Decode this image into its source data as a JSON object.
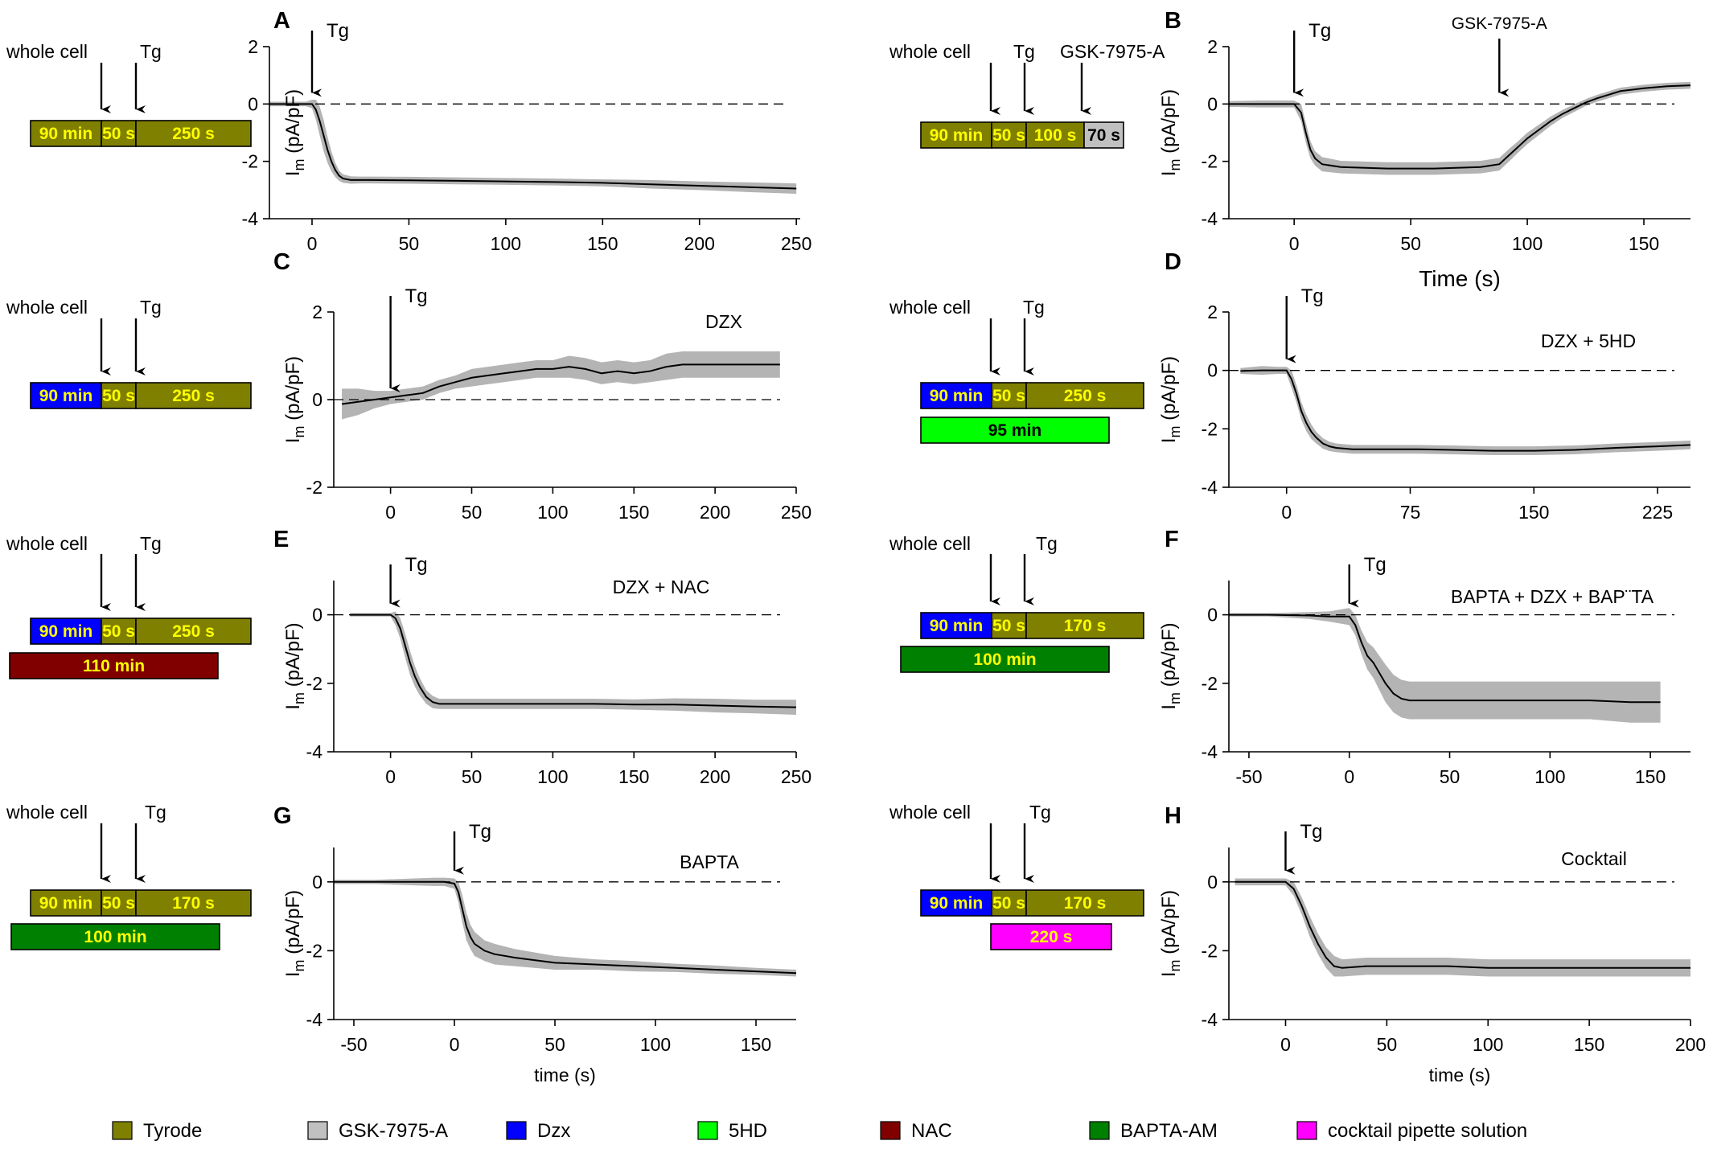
{
  "colors": {
    "Tyrode": "#808000",
    "GSK-7975-A": "#c0c0c0",
    "Dzx": "#0000ff",
    "5HD": "#00ff00",
    "NAC": "#800000",
    "BAPTA-AM": "#008000",
    "cocktail pipette solution": "#ff00ff",
    "barTextLight": "#ffff00",
    "barTextDark": "#000000",
    "trace": "#000000",
    "errorBand": "#b4b4b4"
  },
  "legend": [
    {
      "key": "Tyrode",
      "label": "Tyrode"
    },
    {
      "key": "GSK-7975-A",
      "label": "GSK-7975-A"
    },
    {
      "key": "Dzx",
      "label": "Dzx"
    },
    {
      "key": "5HD",
      "label": "5HD"
    },
    {
      "key": "NAC",
      "label": "NAC"
    },
    {
      "key": "BAPTA-AM",
      "label": "BAPTA-AM"
    },
    {
      "key": "cocktail pipette solution",
      "label": "cocktail pipette solution"
    }
  ],
  "protocols": [
    {
      "id": "A",
      "markers": [
        "whole cell",
        "Tg"
      ],
      "rows": [
        [
          {
            "label": "90 min",
            "color": "Tyrode"
          },
          {
            "label": "50 s",
            "color": "Tyrode"
          },
          {
            "label": "250 s",
            "color": "Tyrode"
          }
        ]
      ]
    },
    {
      "id": "B",
      "markers": [
        "whole cell",
        "Tg",
        "GSK-7975-A"
      ],
      "rows": [
        [
          {
            "label": "90 min",
            "color": "Tyrode"
          },
          {
            "label": "50 s",
            "color": "Tyrode"
          },
          {
            "label": "100 s",
            "color": "Tyrode"
          },
          {
            "label": "70 s",
            "color": "GSK-7975-A"
          }
        ]
      ]
    },
    {
      "id": "C",
      "markers": [
        "whole cell",
        "Tg"
      ],
      "rows": [
        [
          {
            "label": "90 min",
            "color": "Dzx"
          },
          {
            "label": "50 s",
            "color": "Tyrode"
          },
          {
            "label": "250 s",
            "color": "Tyrode"
          }
        ]
      ]
    },
    {
      "id": "D",
      "markers": [
        "whole cell",
        "Tg"
      ],
      "rows": [
        [
          {
            "label": "90 min",
            "color": "Dzx"
          },
          {
            "label": "50 s",
            "color": "Tyrode"
          },
          {
            "label": "250 s",
            "color": "Tyrode"
          }
        ],
        [
          {
            "label": "95 min",
            "color": "5HD"
          }
        ]
      ]
    },
    {
      "id": "E",
      "markers": [
        "whole cell",
        "Tg"
      ],
      "rows": [
        [
          {
            "label": "90 min",
            "color": "Dzx"
          },
          {
            "label": "50 s",
            "color": "Tyrode"
          },
          {
            "label": "250 s",
            "color": "Tyrode"
          }
        ],
        [
          {
            "label": "110 min",
            "color": "NAC"
          }
        ]
      ]
    },
    {
      "id": "F",
      "markers": [
        "whole cell",
        "Tg"
      ],
      "rows": [
        [
          {
            "label": "90 min",
            "color": "Dzx"
          },
          {
            "label": "50 s",
            "color": "Tyrode"
          },
          {
            "label": "170 s",
            "color": "Tyrode"
          }
        ],
        [
          {
            "label": "100 min",
            "color": "BAPTA-AM"
          }
        ]
      ]
    },
    {
      "id": "G",
      "markers": [
        "whole cell",
        "Tg"
      ],
      "rows": [
        [
          {
            "label": "90 min",
            "color": "Tyrode"
          },
          {
            "label": "50 s",
            "color": "Tyrode"
          },
          {
            "label": "170 s",
            "color": "Tyrode"
          }
        ],
        [
          {
            "label": "100 min",
            "color": "BAPTA-AM"
          }
        ]
      ]
    },
    {
      "id": "H",
      "markers": [
        "whole cell",
        "Tg"
      ],
      "rows": [
        [
          {
            "label": "90 min",
            "color": "Dzx"
          },
          {
            "label": "50 s",
            "color": "Tyrode"
          },
          {
            "label": "170 s",
            "color": "Tyrode"
          }
        ],
        [
          {
            "label": "220 s",
            "color": "cocktail pipette solution"
          }
        ]
      ]
    }
  ],
  "chart_data": [
    {
      "panel": "A",
      "type": "line",
      "title": "",
      "condition": "",
      "annotation": "Tg",
      "annotation_x": 0,
      "xlim": [
        -22,
        252
      ],
      "ylim": [
        -4,
        2
      ],
      "xticks": [
        0,
        50,
        100,
        150,
        200,
        250
      ],
      "yticks": [
        -4,
        -2,
        0,
        2
      ],
      "xlabel": "",
      "ylabel": "Im (pA/pF)",
      "series": [
        {
          "name": "mean current",
          "x": [
            -22,
            -10,
            -3,
            0,
            2,
            4,
            6,
            8,
            10,
            12,
            14,
            16,
            20,
            25,
            30,
            50,
            75,
            100,
            125,
            150,
            175,
            200,
            225,
            250
          ],
          "y": [
            0,
            0,
            0,
            0,
            -0.2,
            -0.6,
            -1.1,
            -1.6,
            -2.0,
            -2.3,
            -2.5,
            -2.6,
            -2.65,
            -2.65,
            -2.65,
            -2.66,
            -2.68,
            -2.7,
            -2.72,
            -2.75,
            -2.8,
            -2.85,
            -2.9,
            -2.95
          ],
          "error": [
            0.08,
            0.08,
            0.08,
            0.15,
            0.35,
            0.5,
            0.55,
            0.45,
            0.35,
            0.25,
            0.18,
            0.15,
            0.13,
            0.12,
            0.12,
            0.12,
            0.12,
            0.12,
            0.12,
            0.12,
            0.15,
            0.15,
            0.17,
            0.18
          ]
        }
      ]
    },
    {
      "panel": "B",
      "type": "line",
      "title": "",
      "condition": "",
      "annotation": "Tg",
      "annotation_x": 0,
      "annotation2": "GSK-7975-A",
      "annotation2_x": 88,
      "xlim": [
        -28,
        170
      ],
      "ylim": [
        -4,
        2
      ],
      "xticks": [
        0,
        50,
        100,
        150
      ],
      "yticks": [
        -4,
        -2,
        0,
        2
      ],
      "xlabel": "Time (s)",
      "ylabel": "Im (pA/pF)",
      "series": [
        {
          "name": "mean current",
          "x": [
            -28,
            -15,
            -5,
            0,
            3,
            5,
            7,
            9,
            12,
            20,
            40,
            60,
            80,
            88,
            92,
            96,
            100,
            105,
            110,
            115,
            120,
            125,
            130,
            140,
            150,
            160,
            170
          ],
          "y": [
            0,
            0,
            0,
            0,
            -0.3,
            -1.0,
            -1.6,
            -1.9,
            -2.1,
            -2.2,
            -2.25,
            -2.25,
            -2.2,
            -2.1,
            -1.8,
            -1.5,
            -1.2,
            -0.9,
            -0.6,
            -0.35,
            -0.15,
            0.05,
            0.2,
            0.45,
            0.55,
            0.62,
            0.65
          ],
          "error": [
            0.1,
            0.12,
            0.12,
            0.12,
            0.3,
            0.35,
            0.3,
            0.25,
            0.25,
            0.22,
            0.22,
            0.22,
            0.22,
            0.22,
            0.22,
            0.2,
            0.2,
            0.18,
            0.16,
            0.14,
            0.13,
            0.12,
            0.12,
            0.12,
            0.12,
            0.12,
            0.12
          ]
        }
      ]
    },
    {
      "panel": "C",
      "type": "line",
      "title": "",
      "condition": "DZX",
      "annotation": "Tg",
      "annotation_x": 0,
      "xlim": [
        -35,
        250
      ],
      "ylim": [
        -2,
        2
      ],
      "xticks": [
        0,
        50,
        100,
        150,
        200,
        250
      ],
      "yticks": [
        -2,
        0,
        2
      ],
      "xlabel": "",
      "ylabel": "Im (pA/pF)",
      "series": [
        {
          "name": "mean current",
          "x": [
            -30,
            -20,
            -10,
            0,
            10,
            20,
            30,
            40,
            50,
            60,
            70,
            80,
            90,
            100,
            110,
            120,
            130,
            140,
            150,
            160,
            170,
            180,
            190,
            200,
            210,
            220,
            230,
            240
          ],
          "y": [
            -0.1,
            -0.05,
            0,
            0.05,
            0.1,
            0.15,
            0.3,
            0.4,
            0.5,
            0.55,
            0.6,
            0.65,
            0.7,
            0.7,
            0.75,
            0.7,
            0.6,
            0.65,
            0.6,
            0.65,
            0.75,
            0.8,
            0.8,
            0.8,
            0.8,
            0.8,
            0.8,
            0.8
          ],
          "error": [
            0.35,
            0.3,
            0.2,
            0.15,
            0.15,
            0.15,
            0.15,
            0.15,
            0.2,
            0.2,
            0.2,
            0.2,
            0.2,
            0.2,
            0.25,
            0.25,
            0.25,
            0.25,
            0.25,
            0.25,
            0.3,
            0.3,
            0.3,
            0.3,
            0.3,
            0.3,
            0.3,
            0.3
          ]
        }
      ]
    },
    {
      "panel": "D",
      "type": "line",
      "title": "",
      "condition": "DZX + 5HD",
      "annotation": "Tg",
      "annotation_x": 0,
      "xlim": [
        -35,
        245
      ],
      "ylim": [
        -4,
        2
      ],
      "xticks": [
        0,
        75,
        150,
        225
      ],
      "yticks": [
        -4,
        -2,
        0,
        2
      ],
      "xlabel": "",
      "ylabel": "Im (pA/pF)",
      "series": [
        {
          "name": "mean current",
          "x": [
            -28,
            -15,
            -5,
            0,
            3,
            6,
            9,
            12,
            15,
            18,
            22,
            26,
            30,
            40,
            60,
            80,
            100,
            125,
            150,
            175,
            200,
            225,
            245
          ],
          "y": [
            -0.02,
            0,
            0,
            0,
            -0.3,
            -0.8,
            -1.4,
            -1.8,
            -2.1,
            -2.3,
            -2.5,
            -2.6,
            -2.65,
            -2.7,
            -2.7,
            -2.7,
            -2.72,
            -2.75,
            -2.75,
            -2.72,
            -2.65,
            -2.6,
            -2.55
          ],
          "error": [
            0.1,
            0.15,
            0.12,
            0.12,
            0.3,
            0.3,
            0.3,
            0.28,
            0.25,
            0.2,
            0.18,
            0.16,
            0.15,
            0.15,
            0.15,
            0.15,
            0.15,
            0.15,
            0.15,
            0.15,
            0.15,
            0.15,
            0.15
          ]
        }
      ]
    },
    {
      "panel": "E",
      "type": "line",
      "title": "",
      "condition": "DZX + NAC",
      "annotation": "Tg",
      "annotation_x": 0,
      "xlim": [
        -35,
        250
      ],
      "ylim": [
        -4,
        1
      ],
      "xticks": [
        0,
        50,
        100,
        150,
        200,
        250
      ],
      "yticks": [
        -4,
        -2,
        0
      ],
      "xlabel": "",
      "ylabel": "Im (pA/pF)",
      "series": [
        {
          "name": "mean current",
          "x": [
            -25,
            -15,
            -5,
            0,
            3,
            6,
            9,
            12,
            15,
            18,
            22,
            26,
            30,
            40,
            60,
            80,
            100,
            125,
            150,
            175,
            200,
            225,
            250
          ],
          "y": [
            0,
            0,
            0,
            0,
            -0.1,
            -0.4,
            -0.9,
            -1.4,
            -1.8,
            -2.1,
            -2.4,
            -2.55,
            -2.6,
            -2.6,
            -2.6,
            -2.6,
            -2.6,
            -2.6,
            -2.62,
            -2.62,
            -2.65,
            -2.68,
            -2.7
          ],
          "error": [
            0.05,
            0.05,
            0.05,
            0.05,
            0.2,
            0.3,
            0.35,
            0.35,
            0.3,
            0.25,
            0.2,
            0.18,
            0.15,
            0.15,
            0.15,
            0.15,
            0.15,
            0.15,
            0.15,
            0.18,
            0.2,
            0.2,
            0.22
          ]
        }
      ]
    },
    {
      "panel": "F",
      "type": "line",
      "title": "",
      "condition": "BAPTA + DZX + BAP¨TA",
      "annotation": "Tg",
      "annotation_x": 0,
      "xlim": [
        -60,
        170
      ],
      "ylim": [
        -4,
        1
      ],
      "xticks": [
        -50,
        0,
        50,
        100,
        150
      ],
      "yticks": [
        -4,
        -2,
        0
      ],
      "xlabel": "",
      "ylabel": "Im (pA/pF)",
      "series": [
        {
          "name": "mean current",
          "x": [
            -60,
            -40,
            -20,
            -10,
            -5,
            0,
            3,
            6,
            9,
            12,
            15,
            18,
            22,
            26,
            30,
            40,
            60,
            80,
            100,
            120,
            140,
            155
          ],
          "y": [
            0,
            0,
            -0.02,
            -0.05,
            -0.05,
            -0.05,
            -0.3,
            -0.8,
            -1.2,
            -1.4,
            -1.7,
            -2.0,
            -2.3,
            -2.45,
            -2.5,
            -2.5,
            -2.5,
            -2.5,
            -2.5,
            -2.5,
            -2.55,
            -2.55
          ],
          "error": [
            0.05,
            0.05,
            0.1,
            0.15,
            0.2,
            0.25,
            0.3,
            0.35,
            0.4,
            0.45,
            0.5,
            0.55,
            0.55,
            0.55,
            0.55,
            0.55,
            0.55,
            0.55,
            0.55,
            0.55,
            0.6,
            0.6
          ]
        }
      ]
    },
    {
      "panel": "G",
      "type": "line",
      "title": "",
      "condition": "BAPTA",
      "annotation": "Tg",
      "annotation_x": 0,
      "xlim": [
        -60,
        170
      ],
      "ylim": [
        -4,
        1
      ],
      "xticks": [
        -50,
        0,
        50,
        100,
        150
      ],
      "yticks": [
        -4,
        -2,
        0
      ],
      "xlabel": "time (s)",
      "ylabel": "Im (pA/pF)",
      "series": [
        {
          "name": "mean current",
          "x": [
            -60,
            -40,
            -20,
            -10,
            -5,
            0,
            2,
            4,
            6,
            8,
            10,
            15,
            20,
            30,
            50,
            70,
            90,
            110,
            130,
            150,
            170
          ],
          "y": [
            0,
            0,
            0,
            0,
            0,
            -0.05,
            -0.3,
            -0.8,
            -1.3,
            -1.6,
            -1.8,
            -2.0,
            -2.1,
            -2.2,
            -2.35,
            -2.4,
            -2.45,
            -2.5,
            -2.55,
            -2.6,
            -2.65
          ],
          "error": [
            0.06,
            0.06,
            0.1,
            0.12,
            0.12,
            0.15,
            0.3,
            0.4,
            0.4,
            0.35,
            0.35,
            0.3,
            0.3,
            0.25,
            0.2,
            0.15,
            0.15,
            0.12,
            0.12,
            0.1,
            0.1
          ]
        }
      ]
    },
    {
      "panel": "H",
      "type": "line",
      "title": "",
      "condition": "Cocktail",
      "annotation": "Tg",
      "annotation_x": 0,
      "xlim": [
        -28,
        200
      ],
      "ylim": [
        -4,
        1
      ],
      "xticks": [
        0,
        50,
        100,
        150,
        200
      ],
      "yticks": [
        -4,
        -2,
        0
      ],
      "xlabel": "time (s)",
      "ylabel": "Im (pA/pF)",
      "series": [
        {
          "name": "mean current",
          "x": [
            -25,
            -15,
            -5,
            0,
            4,
            8,
            12,
            16,
            20,
            24,
            28,
            40,
            60,
            80,
            100,
            120,
            140,
            160,
            180,
            200
          ],
          "y": [
            0,
            0,
            0,
            0,
            -0.2,
            -0.7,
            -1.3,
            -1.8,
            -2.2,
            -2.45,
            -2.5,
            -2.45,
            -2.45,
            -2.45,
            -2.5,
            -2.5,
            -2.5,
            -2.5,
            -2.5,
            -2.5
          ],
          "error": [
            0.1,
            0.1,
            0.1,
            0.1,
            0.2,
            0.25,
            0.3,
            0.3,
            0.3,
            0.3,
            0.25,
            0.25,
            0.25,
            0.25,
            0.25,
            0.25,
            0.25,
            0.25,
            0.25,
            0.25
          ]
        }
      ]
    }
  ]
}
